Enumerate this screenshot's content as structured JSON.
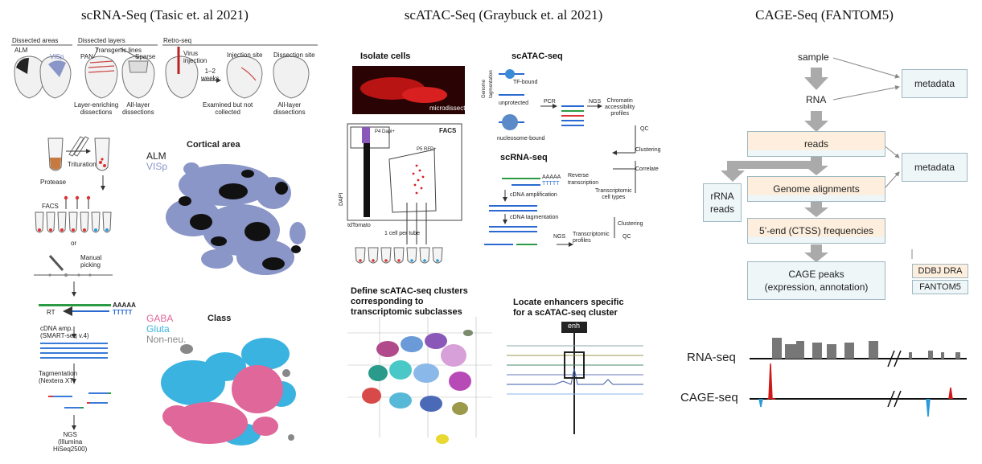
{
  "panels": {
    "left": {
      "title": "scRNA-Seq (Tasic et. al 2021)",
      "top_headers": [
        "Dissected areas",
        "Dissected layers",
        "Retro-seq"
      ],
      "areas": [
        "ALM",
        "VISp"
      ],
      "transgenic": "Transgenic lines",
      "pan": "PAN",
      "sparse": "Sparse",
      "virus": "Virus\ninjection",
      "weeks": "1–2\nweeks",
      "inj_site": "Injection site",
      "diss_site": "Dissection site",
      "layer_enriching": "Layer-enriching\ndissections",
      "all_layer": "All-layer\ndissections",
      "examined": "Examined but not\ncollected",
      "all_layer2": "All-layer\ndissections",
      "protocol": {
        "protease": "Protease",
        "trituration": "Trituration",
        "facs": "FACS",
        "or": "or",
        "manual": "Manual\npicking",
        "rt": "RT",
        "aaaaa": "AAAAA",
        "ttttt": "TTTTT",
        "cdna": "cDNA amp.\n(SMART-seq v.4)",
        "tag": "Tagmentation\n(Nextera XT)",
        "ngs": "NGS\n(Illumina\nHiSeq2500)"
      },
      "umap1": {
        "title": "Cortical area",
        "legend": [
          "ALM",
          "VISp"
        ],
        "colors": [
          "#111111",
          "#8a95c8"
        ]
      },
      "umap2": {
        "title": "Class",
        "legend": [
          "GABA",
          "Gluta",
          "Non-neu."
        ],
        "colors": [
          "#e0679a",
          "#3ab3e0",
          "#888888"
        ]
      }
    },
    "middle": {
      "title": "scATAC-Seq (Graybuck et. al 2021)",
      "isolate": "Isolate cells",
      "microdissect": "microdissect",
      "facs": "FACS",
      "p4": "P4 Dapi+",
      "p5": "P5 RFP+",
      "dapi": "DAPI",
      "tdtomato": "tdTomato",
      "one_cell": "1 cell per tube",
      "scatac": "scATAC-seq",
      "genome_tag": "Genome\ntagmentation",
      "tf_bound": "TF-bound",
      "unprotected": "unprotected",
      "nuc_bound": "nucleosome-bound",
      "pcr": "PCR",
      "ngs": "NGS",
      "chromatin": "Chromatin\naccessibility\nprofiles",
      "qc": "QC",
      "clustering": "Clustering",
      "correlate": "Correlate",
      "transcriptomic_types": "Transcriptomic\ncell types",
      "clustering2": "Clustering",
      "qc2": "QC",
      "scrna": "scRNA-seq",
      "aaaaa": "AAAAA",
      "ttttt": "TTTTT",
      "reverse": "Reverse\ntranscription",
      "cdna_amp": "cDNA amplification",
      "cdna_tag": "cDNA tagmentation",
      "ngs2": "NGS",
      "tx_profiles": "Transcriptomic\nprofiles",
      "define": "Define scATAC-seq clusters\ncorresponding to\ntranscriptomic subclasses",
      "locate": "Locate enhancers specific\nfor a scATAC-seq cluster",
      "enh": "enh"
    },
    "right": {
      "title": "CAGE-Seq (FANTOM5)",
      "sample": "sample",
      "rna": "RNA",
      "metadata1": "metadata",
      "metadata2": "metadata",
      "reads": "reads",
      "genome_alignments": "Genome alignments",
      "rrna_reads": "rRNA\nreads",
      "frequencies": "5’-end (CTSS) frequencies",
      "cage_peaks": "CAGE peaks\n(expression, annotation)",
      "ddbj": "DDBJ DRA",
      "fantom5": "FANTOM5",
      "track_rna": "RNA-seq",
      "track_cage": "CAGE-seq",
      "colors": {
        "rna": "#777777",
        "cage_plus": "#d01818",
        "cage_minus": "#2a9ad8"
      }
    }
  }
}
